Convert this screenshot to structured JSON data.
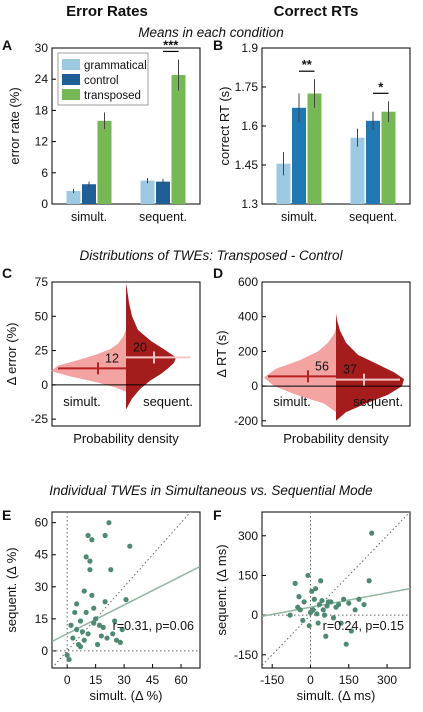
{
  "colors": {
    "grammatical": "#9ec9e2",
    "control": "#1f5e97",
    "transposed": "#76b856",
    "simult_light": "#1f78b4",
    "violin_simult": "#f4a3a3",
    "violin_sequent": "#a51c1c",
    "violin_simult_line": "#b52222",
    "violin_sequent_line": "#f6c4c4",
    "scatter_point": "#4d8a70",
    "scatter_fit": "#8fb7a0",
    "stat_text": "#3f7f62"
  },
  "headings": {
    "col1": "Error Rates",
    "col2": "Correct RTs",
    "row1": "Means in each condition",
    "row2": "Distributions of TWEs: Transposed - Control",
    "row3": "Individual TWEs in Simultaneous vs. Sequential Mode"
  },
  "chart_data": [
    {
      "panel": "A",
      "type": "bar",
      "categories": [
        "simult.",
        "sequent."
      ],
      "series": [
        {
          "name": "grammatical",
          "values": [
            2.5,
            4.5
          ],
          "err": [
            0.4,
            0.5
          ]
        },
        {
          "name": "control",
          "values": [
            3.8,
            4.3
          ],
          "err": [
            0.5,
            0.5
          ]
        },
        {
          "name": "transposed",
          "values": [
            16.0,
            24.8
          ],
          "err": [
            1.6,
            3.0
          ]
        }
      ],
      "significance": [
        "***",
        "***"
      ],
      "ylabel": "error rate (%)",
      "ylim": [
        0,
        30
      ],
      "yticks": [
        "0",
        "6",
        "12",
        "18",
        "24",
        "30"
      ],
      "legend": "top-left"
    },
    {
      "panel": "B",
      "type": "bar",
      "categories": [
        "simult.",
        "sequent."
      ],
      "series": [
        {
          "name": "grammatical",
          "values": [
            1.455,
            1.555
          ],
          "err": [
            0.045,
            0.035
          ]
        },
        {
          "name": "control",
          "values": [
            1.67,
            1.62
          ],
          "err": [
            0.055,
            0.035
          ]
        },
        {
          "name": "transposed",
          "values": [
            1.725,
            1.655
          ],
          "err": [
            0.055,
            0.04
          ]
        }
      ],
      "significance": [
        "**",
        "*"
      ],
      "ylabel": "correct RT (s)",
      "ylim": [
        1.3,
        1.9
      ],
      "yticks": [
        "1.3",
        "1.45",
        "1.6",
        "1.75",
        "1.9"
      ]
    },
    {
      "panel": "C",
      "type": "violin",
      "ylabel": "Δ error (%)",
      "xlabel": "Probability density",
      "ylim": [
        -30,
        75
      ],
      "yticks": [
        "-25",
        "0",
        "25",
        "50",
        "75"
      ],
      "groups": [
        {
          "name": "simult.",
          "mean": 12,
          "mean_label": "12"
        },
        {
          "name": "sequent.",
          "mean": 20,
          "mean_label": "20"
        }
      ]
    },
    {
      "panel": "D",
      "type": "violin",
      "ylabel": "Δ RT (s)",
      "xlabel": "Probability density",
      "ylim": [
        -230,
        600
      ],
      "yticks": [
        "-200",
        "0",
        "200",
        "400",
        "600"
      ],
      "groups": [
        {
          "name": "simult.",
          "mean": 56,
          "mean_label": "56"
        },
        {
          "name": "sequent.",
          "mean": 37,
          "mean_label": "37"
        }
      ]
    },
    {
      "panel": "E",
      "type": "scatter",
      "xlabel": "simult. (Δ %)",
      "ylabel": "sequent. (Δ %)",
      "xlim": [
        -8,
        70
      ],
      "ylim": [
        -8,
        65
      ],
      "xticks": [
        "0",
        "15",
        "30",
        "45",
        "60"
      ],
      "yticks": [
        "0",
        "15",
        "30",
        "45",
        "60"
      ],
      "stat": "r=0.31, p=0.06",
      "fit": {
        "slope": 0.45,
        "intercept": 8
      },
      "points": [
        [
          0,
          -2
        ],
        [
          1,
          -4
        ],
        [
          2,
          12
        ],
        [
          3,
          6
        ],
        [
          4,
          18
        ],
        [
          5,
          22
        ],
        [
          5,
          10
        ],
        [
          6,
          3
        ],
        [
          7,
          2
        ],
        [
          7,
          14
        ],
        [
          8,
          9
        ],
        [
          9,
          28
        ],
        [
          9,
          5
        ],
        [
          10,
          44
        ],
        [
          10,
          18
        ],
        [
          11,
          54
        ],
        [
          11,
          8
        ],
        [
          12,
          38
        ],
        [
          12,
          42
        ],
        [
          13,
          52
        ],
        [
          13,
          26
        ],
        [
          14,
          20
        ],
        [
          14,
          13
        ],
        [
          15,
          15
        ],
        [
          16,
          3
        ],
        [
          17,
          12
        ],
        [
          18,
          7
        ],
        [
          19,
          11
        ],
        [
          20,
          23
        ],
        [
          20,
          54
        ],
        [
          21,
          6
        ],
        [
          22,
          60
        ],
        [
          23,
          38
        ],
        [
          24,
          8
        ],
        [
          25,
          14
        ],
        [
          26,
          5
        ],
        [
          28,
          4
        ],
        [
          29,
          10
        ],
        [
          31,
          24
        ],
        [
          33,
          49
        ]
      ]
    },
    {
      "panel": "F",
      "type": "scatter",
      "xlabel": "simult. (Δ ms)",
      "ylabel": "sequent. (Δ ms)",
      "xlim": [
        -190,
        390
      ],
      "ylim": [
        -200,
        390
      ],
      "xticks": [
        "-150",
        "0",
        "150",
        "300"
      ],
      "yticks": [
        "-150",
        "0",
        "150",
        "300"
      ],
      "stat": "r=0.24, p=0.15",
      "fit": {
        "slope": 0.18,
        "intercept": 30
      },
      "points": [
        [
          -80,
          0
        ],
        [
          -60,
          120
        ],
        [
          -50,
          30
        ],
        [
          -45,
          70
        ],
        [
          -40,
          20
        ],
        [
          -30,
          -20
        ],
        [
          -25,
          50
        ],
        [
          -10,
          150
        ],
        [
          -5,
          -40
        ],
        [
          0,
          10
        ],
        [
          5,
          90
        ],
        [
          10,
          20
        ],
        [
          15,
          60
        ],
        [
          20,
          100
        ],
        [
          25,
          5
        ],
        [
          30,
          -30
        ],
        [
          35,
          40
        ],
        [
          40,
          130
        ],
        [
          45,
          55
        ],
        [
          50,
          20
        ],
        [
          55,
          0
        ],
        [
          60,
          -80
        ],
        [
          65,
          35
        ],
        [
          70,
          50
        ],
        [
          80,
          50
        ],
        [
          90,
          -10
        ],
        [
          100,
          30
        ],
        [
          110,
          40
        ],
        [
          120,
          -30
        ],
        [
          130,
          60
        ],
        [
          140,
          -110
        ],
        [
          150,
          45
        ],
        [
          160,
          -60
        ],
        [
          175,
          20
        ],
        [
          190,
          60
        ],
        [
          210,
          40
        ],
        [
          230,
          130
        ],
        [
          240,
          310
        ]
      ]
    }
  ]
}
